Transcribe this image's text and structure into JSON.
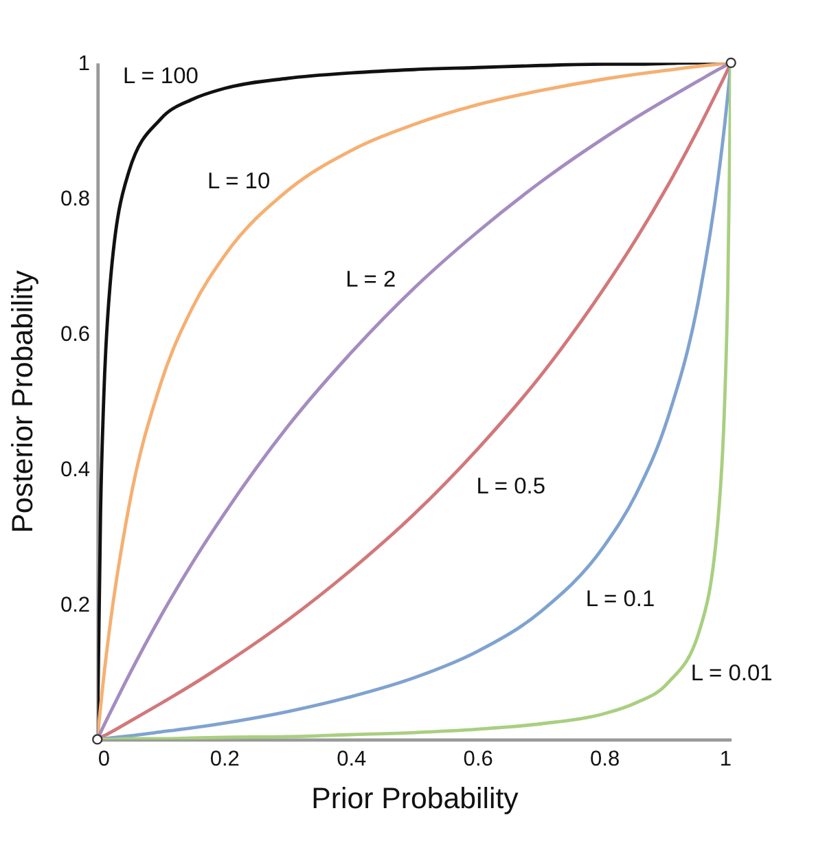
{
  "chart_data": {
    "type": "line",
    "xlabel": "Prior Probability",
    "ylabel": "Posterior Probability",
    "x": [
      0,
      0.005,
      0.01,
      0.02,
      0.05,
      0.1,
      0.15,
      0.2,
      0.3,
      0.4,
      0.5,
      0.6,
      0.7,
      0.8,
      0.85,
      0.9,
      0.95,
      0.98,
      0.99,
      0.995,
      1
    ],
    "series": [
      {
        "name": "L = 100",
        "color": "#111111",
        "values": [
          0,
          0.334,
          0.503,
          0.671,
          0.84,
          0.917,
          0.946,
          0.962,
          0.977,
          0.985,
          0.99,
          0.993,
          0.996,
          0.998,
          0.998,
          0.999,
          1,
          1,
          1,
          1,
          1
        ]
      },
      {
        "name": "L = 10",
        "color": "#f5b072",
        "values": [
          0,
          0.048,
          0.092,
          0.169,
          0.345,
          0.526,
          0.638,
          0.714,
          0.811,
          0.87,
          0.909,
          0.938,
          0.959,
          0.976,
          0.983,
          0.989,
          0.995,
          0.998,
          0.999,
          1,
          1
        ]
      },
      {
        "name": "L = 2",
        "color": "#a48cc0",
        "values": [
          0,
          0.01,
          0.02,
          0.039,
          0.095,
          0.182,
          0.261,
          0.333,
          0.462,
          0.571,
          0.667,
          0.75,
          0.824,
          0.889,
          0.919,
          0.947,
          0.974,
          0.99,
          0.995,
          0.998,
          1
        ]
      },
      {
        "name": "L = 0.5",
        "color": "#d2787a",
        "values": [
          0,
          0.003,
          0.005,
          0.01,
          0.026,
          0.053,
          0.081,
          0.111,
          0.176,
          0.25,
          0.333,
          0.429,
          0.538,
          0.667,
          0.739,
          0.818,
          0.905,
          0.961,
          0.98,
          0.99,
          1
        ]
      },
      {
        "name": "L = 0.1",
        "color": "#7fa3d0",
        "values": [
          0,
          0.001,
          0.001,
          0.002,
          0.005,
          0.011,
          0.017,
          0.024,
          0.041,
          0.063,
          0.091,
          0.13,
          0.189,
          0.286,
          0.362,
          0.474,
          0.655,
          0.831,
          0.908,
          0.952,
          1
        ]
      },
      {
        "name": "L = 0.01",
        "color": "#a9cf80",
        "values": [
          0,
          0,
          0,
          0,
          0.001,
          0.001,
          0.002,
          0.003,
          0.004,
          0.007,
          0.01,
          0.015,
          0.023,
          0.038,
          0.054,
          0.083,
          0.16,
          0.329,
          0.497,
          0.666,
          1
        ]
      },
      {
        "type": "scatter",
        "color": "#ffffff",
        "marker": "circle",
        "x": [
          0,
          1
        ],
        "values": [
          0,
          1
        ]
      }
    ],
    "xlim": [
      0,
      1
    ],
    "ylim": [
      0,
      1
    ],
    "xticks": [
      0,
      0.2,
      0.4,
      0.6,
      0.8,
      1
    ],
    "yticks": [
      0.2,
      0.4,
      0.6,
      0.8,
      1
    ],
    "grid": false
  }
}
